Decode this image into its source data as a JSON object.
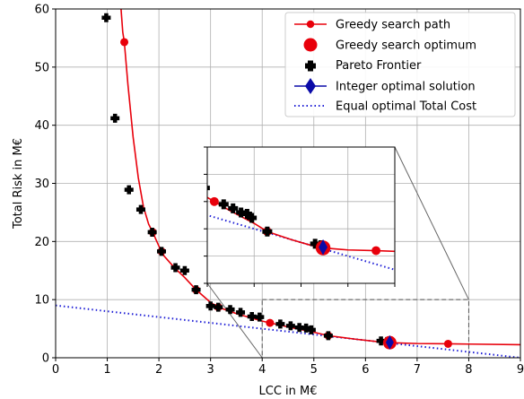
{
  "chart_data": {
    "type": "line",
    "xlabel": "LCC in M€",
    "ylabel": "Total Risk in M€",
    "xlim": [
      0,
      9
    ],
    "ylim": [
      0,
      60
    ],
    "xticks": [
      0,
      1,
      2,
      3,
      4,
      5,
      6,
      7,
      8,
      9
    ],
    "yticks": [
      0,
      10,
      20,
      30,
      40,
      50,
      60
    ],
    "grid": true,
    "legend_position": "top-right",
    "legend": [
      "Greedy search path",
      "Greedy search optimum",
      "Pareto Frontier",
      "Integer optimal solution",
      "Equal optimal Total Cost"
    ],
    "colors": {
      "greedy": "#e8000b",
      "pareto": "#000000",
      "integer": "#0a0aa8",
      "equal_cost": "#1f1fd6"
    },
    "greedy_curve": [
      [
        1.25,
        62
      ],
      [
        1.3,
        56
      ],
      [
        1.33,
        54.3
      ],
      [
        1.4,
        47
      ],
      [
        1.5,
        38
      ],
      [
        1.6,
        31
      ],
      [
        1.7,
        26
      ],
      [
        1.8,
        23
      ],
      [
        1.88,
        21.6
      ],
      [
        2.0,
        19.2
      ],
      [
        2.1,
        17.5
      ],
      [
        2.3,
        15.5
      ],
      [
        2.5,
        13.8
      ],
      [
        2.72,
        11.7
      ],
      [
        3.0,
        9.5
      ],
      [
        3.15,
        8.7
      ],
      [
        3.5,
        7.6
      ],
      [
        4.0,
        6.3
      ],
      [
        4.5,
        5.3
      ],
      [
        5.0,
        4.4
      ],
      [
        5.28,
        3.8
      ],
      [
        5.8,
        3.2
      ],
      [
        6.2,
        2.8
      ],
      [
        6.47,
        2.6
      ],
      [
        7.0,
        2.45
      ],
      [
        7.6,
        2.4
      ],
      [
        8.0,
        2.35
      ],
      [
        9.0,
        2.25
      ]
    ],
    "greedy_markers": [
      [
        1.33,
        54.3
      ],
      [
        1.88,
        21.6
      ],
      [
        2.05,
        18.3
      ],
      [
        2.72,
        11.7
      ],
      [
        3.15,
        8.7
      ],
      [
        4.15,
        6.0
      ],
      [
        5.28,
        3.8
      ],
      [
        7.6,
        2.4
      ]
    ],
    "greedy_optimum": [
      6.47,
      2.6
    ],
    "pareto": [
      [
        0.98,
        58.5
      ],
      [
        1.15,
        41.2
      ],
      [
        1.42,
        28.9
      ],
      [
        1.65,
        25.5
      ],
      [
        1.87,
        21.6
      ],
      [
        2.05,
        18.3
      ],
      [
        2.32,
        15.5
      ],
      [
        2.5,
        15.0
      ],
      [
        2.72,
        11.7
      ],
      [
        3.0,
        8.9
      ],
      [
        3.15,
        8.7
      ],
      [
        3.38,
        8.3
      ],
      [
        3.58,
        7.8
      ],
      [
        3.8,
        7.1
      ],
      [
        3.95,
        7.0
      ],
      [
        4.35,
        5.8
      ],
      [
        4.55,
        5.5
      ],
      [
        4.72,
        5.2
      ],
      [
        4.85,
        5.1
      ],
      [
        4.95,
        4.8
      ],
      [
        5.28,
        3.8
      ],
      [
        6.3,
        2.9
      ],
      [
        6.42,
        2.8
      ]
    ],
    "integer_optimum": [
      6.47,
      2.65
    ],
    "equal_cost_line": [
      [
        0,
        9.0
      ],
      [
        9,
        0.0
      ]
    ],
    "inset": {
      "xlim": [
        4,
        8
      ],
      "ylim": [
        0,
        10
      ]
    }
  }
}
